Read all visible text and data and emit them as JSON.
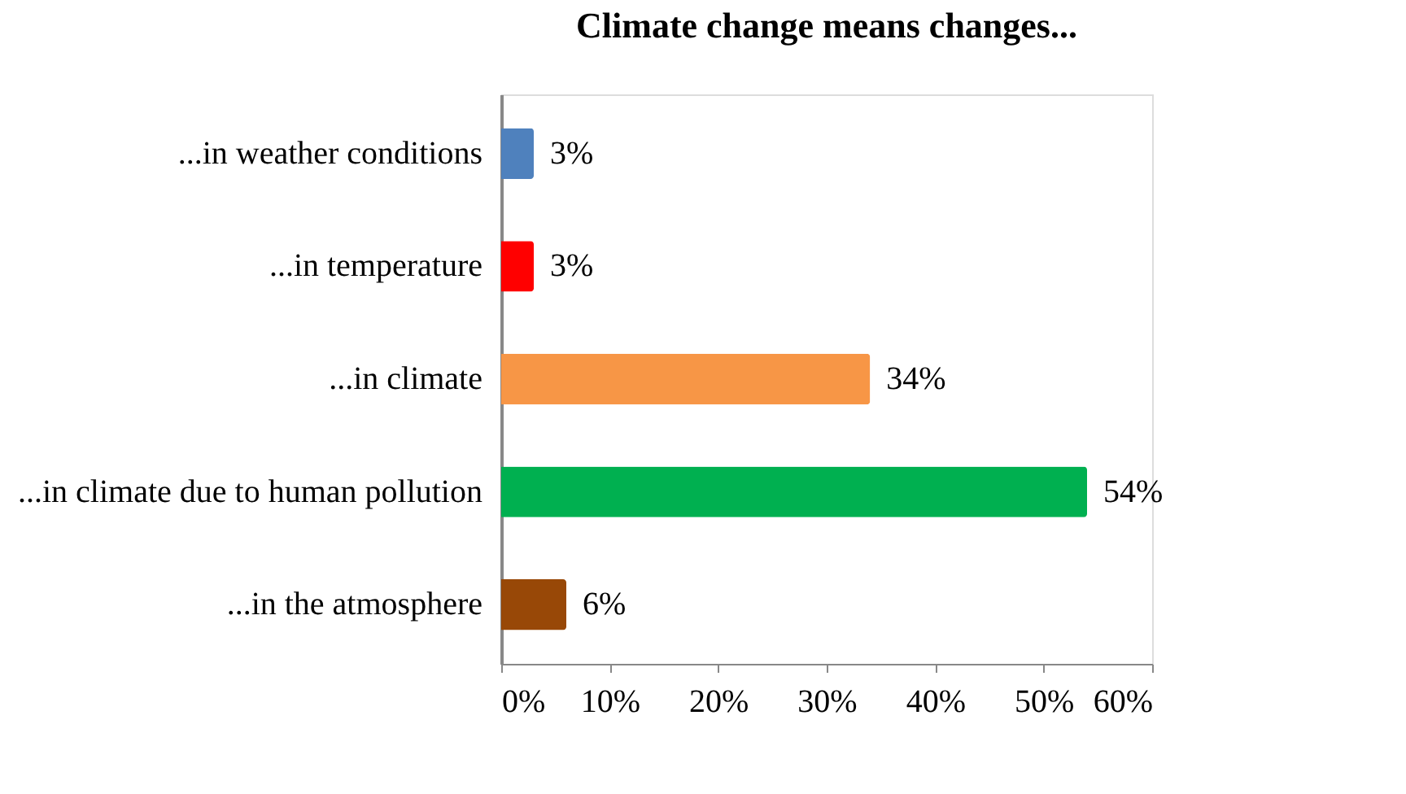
{
  "chart_data": {
    "type": "bar",
    "orientation": "horizontal",
    "title": "Climate change means changes...",
    "categories": [
      "...in weather conditions",
      "...in temperature",
      "...in climate",
      "...in climate  due to human pollution",
      "...in the atmosphere"
    ],
    "values": [
      3,
      3,
      34,
      54,
      6
    ],
    "colors": [
      "#4f81bd",
      "#ff0000",
      "#f79646",
      "#00b050",
      "#984807"
    ],
    "value_labels": [
      "3%",
      "3%",
      "34%",
      "54%",
      "6%"
    ],
    "xlim": [
      0,
      60
    ],
    "xticks": [
      {
        "value": 0,
        "label": "0%"
      },
      {
        "value": 10,
        "label": "10%"
      },
      {
        "value": 20,
        "label": "20%"
      },
      {
        "value": 30,
        "label": "30%"
      },
      {
        "value": 40,
        "label": "40%"
      },
      {
        "value": 50,
        "label": "50%"
      },
      {
        "value": 60,
        "label": "60%"
      }
    ],
    "grid": false,
    "legend": false
  }
}
